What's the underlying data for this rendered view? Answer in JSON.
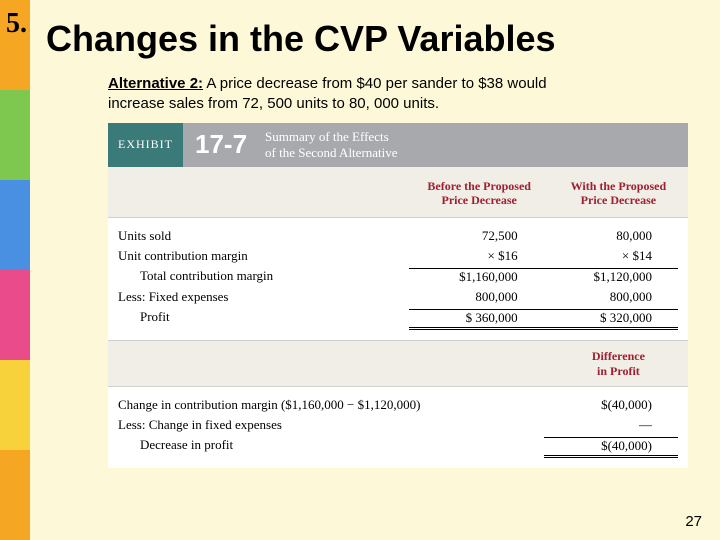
{
  "sidebar_colors": [
    "#f5a623",
    "#7ec850",
    "#4a90e2",
    "#e94b8b",
    "#f8d23a",
    "#f5a623"
  ],
  "slide_number_marker": "5.",
  "title": "Changes in the CVP Variables",
  "alternative": {
    "lead": "Alternative 2:",
    "body": "A price decrease from $40 per sander to $38 would increase sales from 72, 500 units to 80, 000 units."
  },
  "exhibit": {
    "label": "EXHIBIT",
    "number": "17-7",
    "title_line1": "Summary of the Effects",
    "title_line2": "of the Second Alternative",
    "col_before_l1": "Before the Proposed",
    "col_before_l2": "Price Decrease",
    "col_with_l1": "With the Proposed",
    "col_with_l2": "Price Decrease",
    "rows": {
      "units_sold": {
        "label": "Units sold",
        "before": "72,500",
        "with": "80,000"
      },
      "unit_cm": {
        "label": "Unit contribution margin",
        "before": "×  $16",
        "with": "×  $14"
      },
      "total_cm": {
        "label": "Total contribution margin",
        "before": "$1,160,000",
        "with": "$1,120,000"
      },
      "less_fixed": {
        "label": "Less: Fixed expenses",
        "before": "800,000",
        "with": "800,000"
      },
      "profit": {
        "label": "Profit",
        "before": "$   360,000",
        "with": "$   320,000"
      }
    },
    "diff_header_l1": "Difference",
    "diff_header_l2": "in Profit",
    "diff_rows": {
      "change_cm": {
        "label": "Change in contribution margin ($1,160,000 − $1,120,000)",
        "val": "$(40,000)"
      },
      "less_change_fixed": {
        "label": "Less: Change in fixed expenses",
        "val": "—"
      },
      "decrease": {
        "label": "Decrease in profit",
        "val": "$(40,000)"
      }
    }
  },
  "page_number": "27"
}
